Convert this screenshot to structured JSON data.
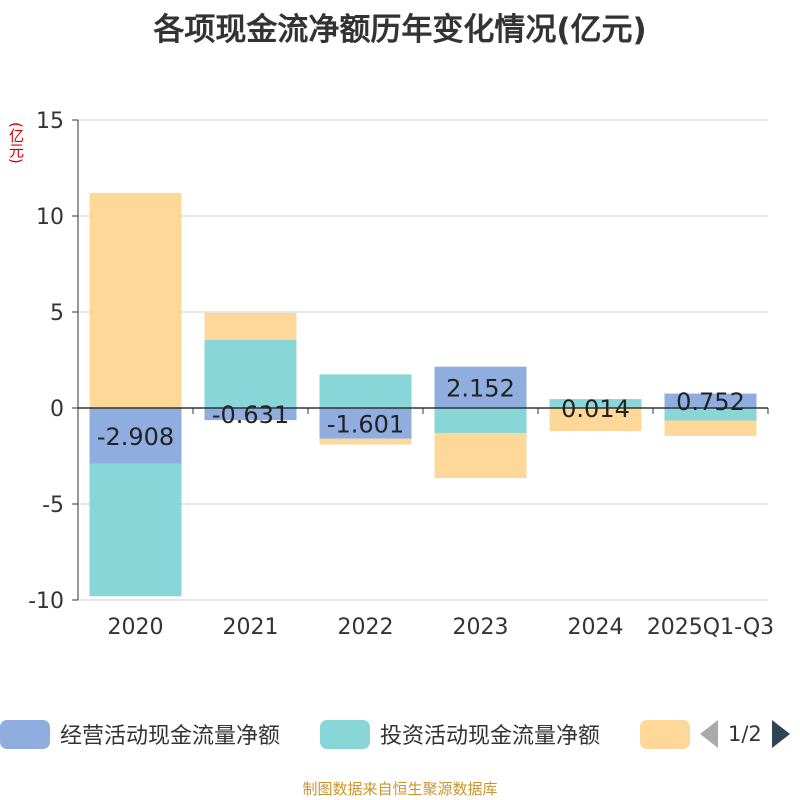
{
  "title": "各项现金流净额历年变化情况(亿元)",
  "unit_label": "(亿元)",
  "footer": "制图数据来自恒生聚源数据库",
  "legend": {
    "items": [
      {
        "label": "经营活动现金流量净额",
        "color": "#8fadde"
      },
      {
        "label": "投资活动现金流量净额",
        "color": "#88d6d8"
      },
      {
        "label": "",
        "color": "#fdd898"
      }
    ],
    "page": "1/2"
  },
  "chart_data": {
    "type": "bar",
    "stacked": true,
    "categories": [
      "2020",
      "2021",
      "2022",
      "2023",
      "2024",
      "2025Q1-Q3"
    ],
    "ylim": [
      -10,
      15
    ],
    "yticks": [
      -10,
      -5,
      0,
      5,
      10,
      15
    ],
    "grid": true,
    "series": [
      {
        "name": "经营活动现金流量净额",
        "color": "#8fadde",
        "values": [
          -2.908,
          -0.631,
          -1.601,
          2.152,
          0.014,
          0.752
        ],
        "labels": [
          "-2.908",
          "-0.631",
          "-1.601",
          "2.152",
          "0.014",
          "0.752"
        ]
      },
      {
        "name": "投资活动现金流量净额",
        "color": "#88d6d8",
        "values": [
          -6.9,
          3.55,
          1.75,
          -1.3,
          0.45,
          -0.65
        ]
      },
      {
        "name": "",
        "color": "#fdd898",
        "values": [
          11.2,
          1.4,
          -0.3,
          -2.35,
          -1.2,
          -0.8
        ]
      }
    ]
  }
}
